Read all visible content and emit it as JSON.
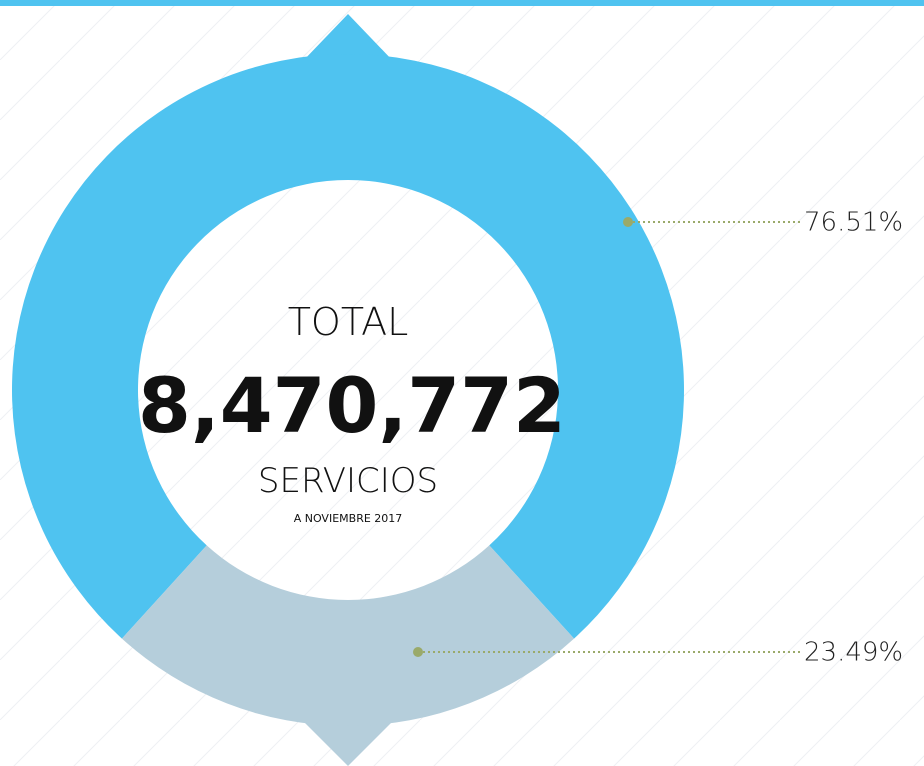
{
  "chart_data": {
    "type": "pie",
    "values": [
      76.51,
      23.49
    ],
    "value_labels": [
      "76.51%",
      "23.49%"
    ],
    "colors": [
      "#4fc3f0",
      "#b5cedb"
    ],
    "center_title": "TOTAL",
    "center_value": "8,470,772",
    "center_unit": "SERVICIOS",
    "center_note": "A NOVIEMBRE 2017"
  }
}
